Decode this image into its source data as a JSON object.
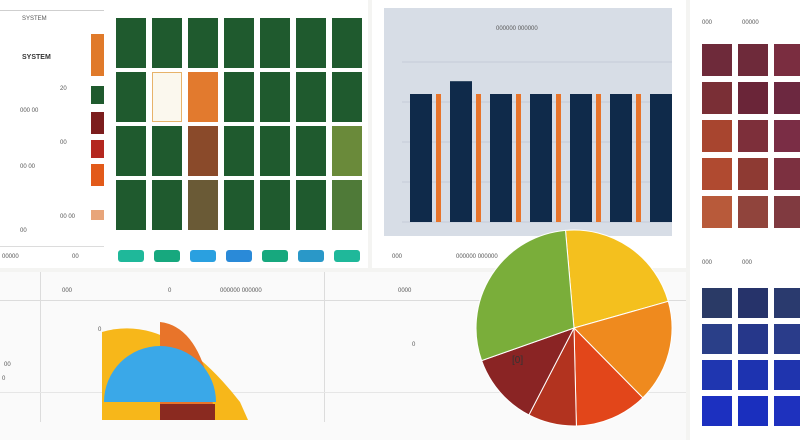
{
  "left_panel": {
    "header_label": "SYSTEM",
    "subtitle": "SYSTEM",
    "row_labels": [
      "20",
      "000 00",
      "00",
      "00 00",
      "00 00",
      "00"
    ],
    "footer_label": "00000",
    "footer_right": "00",
    "swatch_colors": [
      "#e07a2a",
      "#1f5a2e",
      "#7c1d1d",
      "#b4271f",
      "#e25a1a",
      "#e8a57a"
    ],
    "grid_colors": [
      [
        "#1f5a2e",
        "#1f5a2e",
        "#1f5a2e",
        "#1f5a2e",
        "#1f5a2e",
        "#1f5a2e",
        "#1f5a2e"
      ],
      [
        "#1f5a2e",
        "#fbf8ee",
        "#e27a2e",
        "#1f5a2e",
        "#1f5a2e",
        "#1f5a2e",
        "#1f5a2e"
      ],
      [
        "#1f5a2e",
        "#1f5a2e",
        "#8a4a2a",
        "#1f5a2e",
        "#1f5a2e",
        "#1f5a2e",
        "#6a8a3a"
      ],
      [
        "#1f5a2e",
        "#1f5a2e",
        "#6a5a36",
        "#1f5a2e",
        "#1f5a2e",
        "#1f5a2e",
        "#4f7a38"
      ]
    ],
    "tab_colors": [
      "#1fb89a",
      "#17a87e",
      "#2aa0e0",
      "#2a8ad8",
      "#17a87e",
      "#2a98c8",
      "#1fb89a"
    ]
  },
  "top_bar_chart": {
    "title": "000000 000000",
    "footer_left": "000",
    "footer_mid": "000000 000000",
    "navy_values": [
      80,
      88,
      80,
      80,
      80,
      80,
      80
    ],
    "orange_values": [
      80,
      80,
      80,
      80,
      80,
      80
    ],
    "navy_color": "#0f2a4a",
    "orange_color": "#e8742a",
    "ylim": [
      0,
      100
    ]
  },
  "right_panel": {
    "header_label": "000",
    "header_right": "00000",
    "footer_left": "000",
    "footer_mid": "000",
    "warm_grid": [
      [
        "#6e2a3a",
        "#6e2a3a",
        "#7a2d40"
      ],
      [
        "#7a2f36",
        "#6a2538",
        "#6c2840"
      ],
      [
        "#a8452f",
        "#7d2f3a",
        "#7a2d45"
      ],
      [
        "#b04a30",
        "#8e3a33",
        "#7c3040"
      ],
      [
        "#b85a3a",
        "#90443c",
        "#803a40"
      ]
    ],
    "cool_grid": [
      [
        "#2a3a66",
        "#26336a",
        "#2a3a6e"
      ],
      [
        "#2a3f88",
        "#26378a",
        "#2a3c8a"
      ],
      [
        "#1f36b0",
        "#1d33b0",
        "#1f34ae"
      ],
      [
        "#1c30c0",
        "#1a2fbe",
        "#1e31be"
      ]
    ]
  },
  "bottom_chart": {
    "labels": [
      "000",
      "0",
      "000000 000000",
      "0000"
    ],
    "row_labels": [
      "00",
      "0",
      "0",
      "0"
    ],
    "semi_colors": [
      "#f7b71a",
      "#e8742a",
      "#8a2a20",
      "#3aa8e8"
    ]
  },
  "pie_chart": {
    "center_label": "[0]",
    "slices": [
      {
        "value": 22,
        "color": "#f4c01e"
      },
      {
        "value": 17,
        "color": "#ef8a1e"
      },
      {
        "value": 12,
        "color": "#e2461a"
      },
      {
        "value": 8,
        "color": "#b2331f"
      },
      {
        "value": 12,
        "color": "#8a2424"
      },
      {
        "value": 29,
        "color": "#7aae3a"
      }
    ]
  }
}
